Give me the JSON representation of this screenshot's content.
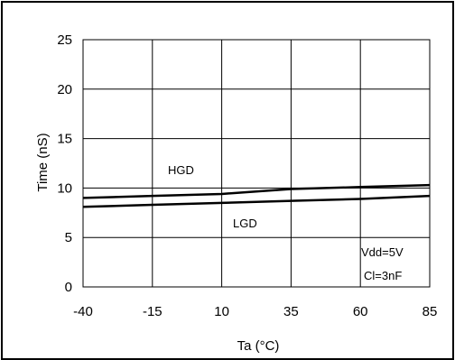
{
  "chart_data": {
    "type": "line",
    "xlabel": "Ta (°C)",
    "ylabel": "Time (nS)",
    "x": [
      -40,
      -15,
      10,
      35,
      60,
      85
    ],
    "xlim": [
      -40,
      85
    ],
    "ylim": [
      0,
      25
    ],
    "xticks": [
      "-40",
      "-15",
      "10",
      "35",
      "60",
      "85"
    ],
    "yticks": [
      "0",
      "5",
      "10",
      "15",
      "20",
      "25"
    ],
    "grid": true,
    "series": [
      {
        "name": "HGD",
        "values": [
          9.0,
          9.2,
          9.4,
          9.9,
          10.1,
          10.3
        ]
      },
      {
        "name": "LGD",
        "values": [
          8.1,
          8.3,
          8.5,
          8.7,
          8.9,
          9.2
        ]
      }
    ],
    "annotations": [
      "Vdd=5V",
      "Cl=3nF"
    ]
  }
}
